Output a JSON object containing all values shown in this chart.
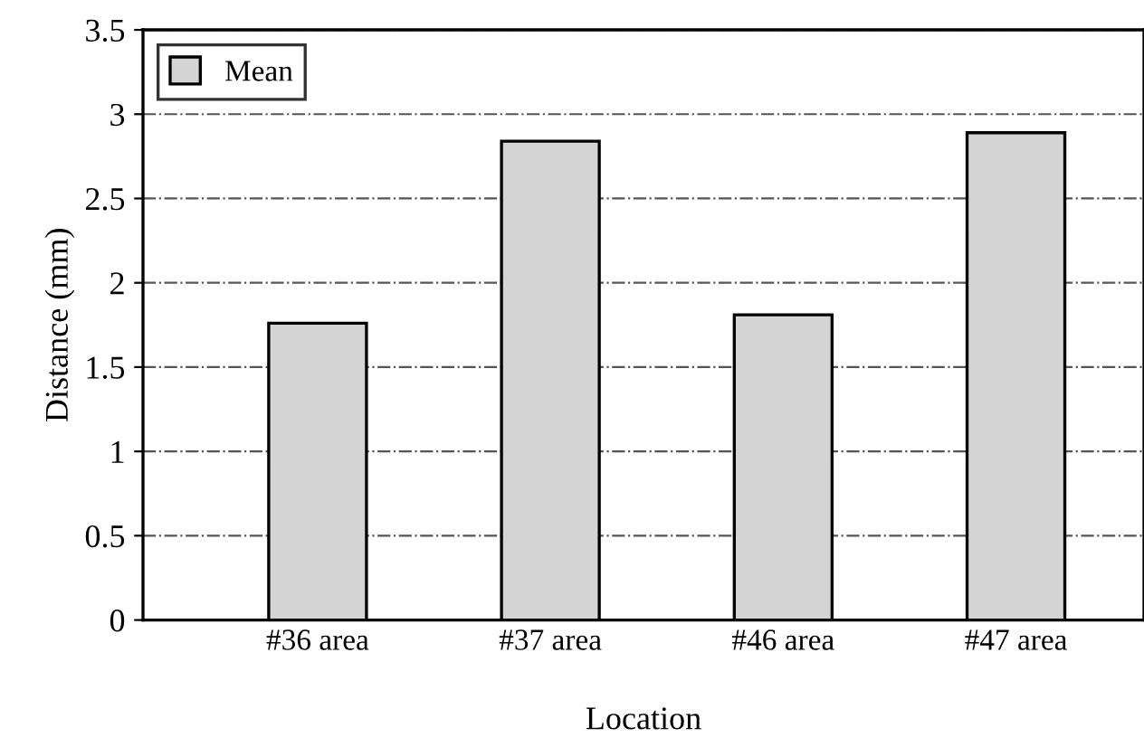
{
  "chart_data": {
    "type": "bar",
    "xlabel": "Location",
    "ylabel": "Distance (mm)",
    "categories": [
      "#36 area",
      "#37 area",
      "#46 area",
      "#47 area"
    ],
    "series": [
      {
        "name": "Mean",
        "color": "#d4d4d4",
        "values": [
          1.76,
          2.84,
          1.81,
          2.89
        ]
      }
    ],
    "ylim": [
      0,
      3.5
    ],
    "yticks": [
      0,
      0.5,
      1,
      1.5,
      2,
      2.5,
      3,
      3.5
    ],
    "grid": "y",
    "legend": "top left"
  }
}
